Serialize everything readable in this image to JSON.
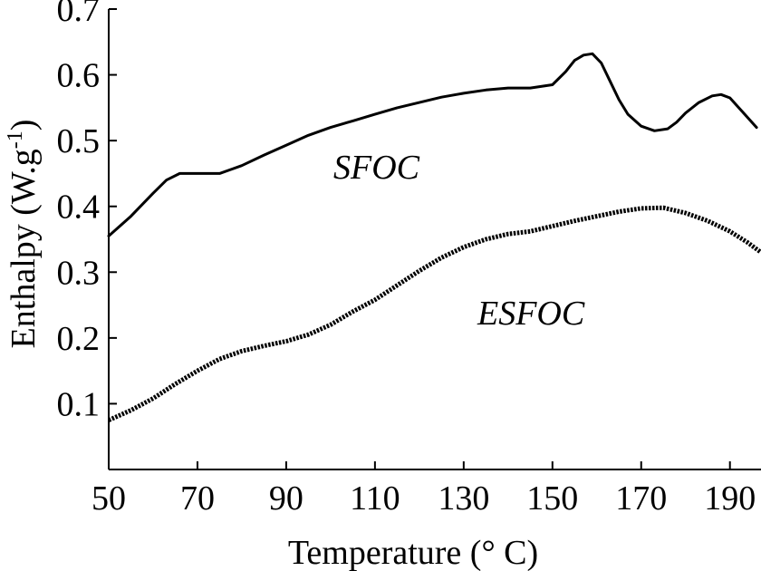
{
  "chart_data": {
    "type": "line",
    "xlabel": "Temperature (° C)",
    "ylabel_main": "Enthalpy (W.g",
    "ylabel_sup": "-1",
    "ylabel_close": ")",
    "xlim": [
      50,
      197
    ],
    "ylim": [
      0,
      0.7
    ],
    "xticks": [
      50,
      70,
      90,
      110,
      130,
      150,
      170,
      190
    ],
    "xtick_labels": [
      "50",
      "70",
      "90",
      "110",
      "130",
      "150",
      "170",
      "190"
    ],
    "yticks": [
      0.1,
      0.2,
      0.3,
      0.4,
      0.5,
      0.6,
      0.7
    ],
    "ytick_labels": [
      "0.1",
      "0.2",
      "0.3",
      "0.4",
      "0.5",
      "0.6",
      "0.7"
    ],
    "grid": false,
    "series": [
      {
        "name": "SFOC",
        "style": "solid",
        "color": "#000000",
        "x": [
          50,
          55,
          60,
          63,
          66,
          70,
          75,
          80,
          85,
          90,
          95,
          100,
          105,
          110,
          115,
          120,
          125,
          130,
          135,
          140,
          145,
          150,
          153,
          155,
          157,
          159,
          161,
          163,
          165,
          167,
          170,
          173,
          176,
          178,
          180,
          183,
          186,
          188,
          190,
          192,
          194,
          196
        ],
        "y": [
          0.355,
          0.385,
          0.42,
          0.44,
          0.45,
          0.45,
          0.45,
          0.462,
          0.478,
          0.493,
          0.508,
          0.52,
          0.53,
          0.54,
          0.55,
          0.558,
          0.566,
          0.572,
          0.577,
          0.58,
          0.58,
          0.585,
          0.605,
          0.622,
          0.63,
          0.632,
          0.618,
          0.59,
          0.562,
          0.54,
          0.522,
          0.515,
          0.518,
          0.528,
          0.542,
          0.558,
          0.568,
          0.57,
          0.565,
          0.55,
          0.535,
          0.52
        ]
      },
      {
        "name": "ESFOC",
        "style": "dotted",
        "color": "#000000",
        "x": [
          50,
          55,
          60,
          65,
          70,
          75,
          80,
          85,
          90,
          95,
          100,
          105,
          110,
          115,
          120,
          125,
          130,
          135,
          140,
          145,
          150,
          155,
          160,
          165,
          170,
          175,
          180,
          185,
          190,
          194,
          197
        ],
        "y": [
          0.075,
          0.09,
          0.108,
          0.13,
          0.15,
          0.168,
          0.18,
          0.188,
          0.195,
          0.205,
          0.22,
          0.24,
          0.258,
          0.28,
          0.302,
          0.322,
          0.338,
          0.35,
          0.358,
          0.362,
          0.37,
          0.378,
          0.385,
          0.392,
          0.397,
          0.398,
          0.39,
          0.378,
          0.362,
          0.345,
          0.33
        ]
      }
    ]
  }
}
